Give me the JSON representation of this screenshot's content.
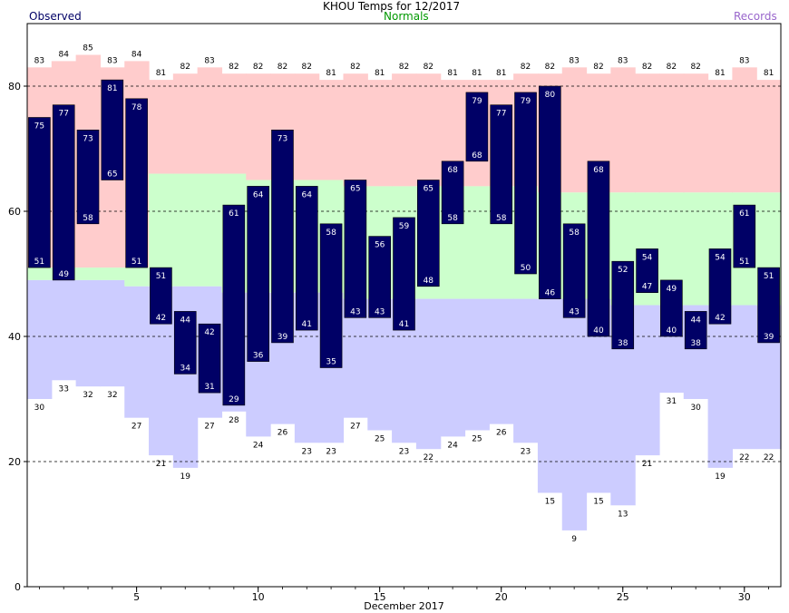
{
  "header": {
    "title": "KHOU Temps for 12/2017",
    "left_label": "Observed",
    "center_label": "Normals",
    "right_label": "Records"
  },
  "colors": {
    "observed": "#000066",
    "normals": "#009900",
    "records": "#9966cc",
    "record_high_band": "#ffcccc",
    "normal_band": "#ccffcc",
    "record_low_band": "#ccccff"
  },
  "chart_data": {
    "type": "bar",
    "xlabel": "December 2017",
    "ylabel": "",
    "x": [
      1,
      2,
      3,
      4,
      5,
      6,
      7,
      8,
      9,
      10,
      11,
      12,
      13,
      14,
      15,
      16,
      17,
      18,
      19,
      20,
      21,
      22,
      23,
      24,
      25,
      26,
      27,
      28,
      29,
      30,
      31
    ],
    "xticks": [
      5,
      10,
      15,
      20,
      25,
      30
    ],
    "yticks": [
      0,
      20,
      40,
      60,
      80
    ],
    "ylim": [
      0,
      90
    ],
    "grid": "dashed at 20, 40, 60, 80",
    "series": [
      {
        "name": "Observed High",
        "values": [
          75,
          77,
          73,
          81,
          78,
          51,
          44,
          42,
          61,
          64,
          73,
          64,
          58,
          65,
          56,
          59,
          65,
          68,
          79,
          77,
          79,
          80,
          58,
          68,
          52,
          54,
          49,
          44,
          54,
          61,
          51
        ]
      },
      {
        "name": "Observed Low",
        "values": [
          51,
          49,
          58,
          65,
          51,
          42,
          34,
          31,
          29,
          36,
          39,
          41,
          35,
          43,
          43,
          41,
          48,
          58,
          68,
          58,
          50,
          46,
          43,
          40,
          38,
          47,
          40,
          38,
          42,
          51,
          39
        ]
      },
      {
        "name": "Record High",
        "values": [
          83,
          84,
          85,
          83,
          84,
          81,
          82,
          83,
          82,
          82,
          82,
          82,
          81,
          82,
          81,
          82,
          82,
          81,
          81,
          81,
          82,
          82,
          83,
          82,
          83,
          82,
          82,
          82,
          81,
          83,
          81
        ]
      },
      {
        "name": "Record Low",
        "values": [
          30,
          33,
          32,
          32,
          27,
          21,
          19,
          27,
          28,
          24,
          26,
          23,
          23,
          27,
          25,
          23,
          22,
          24,
          25,
          26,
          23,
          15,
          9,
          15,
          13,
          21,
          31,
          30,
          19,
          22,
          22
        ]
      },
      {
        "name": "Normal High",
        "values": [
          51,
          51,
          51,
          51,
          51,
          66,
          66,
          66,
          66,
          65,
          65,
          65,
          65,
          64,
          64,
          64,
          64,
          64,
          64,
          64,
          64,
          63,
          63,
          63,
          63,
          63,
          63,
          63,
          63,
          63,
          63
        ]
      },
      {
        "name": "Normal Low",
        "values": [
          49,
          49,
          49,
          49,
          48,
          48,
          48,
          48,
          47,
          47,
          47,
          47,
          47,
          46,
          46,
          46,
          46,
          46,
          46,
          46,
          46,
          46,
          46,
          46,
          45,
          45,
          45,
          45,
          45,
          45,
          45
        ]
      }
    ]
  }
}
